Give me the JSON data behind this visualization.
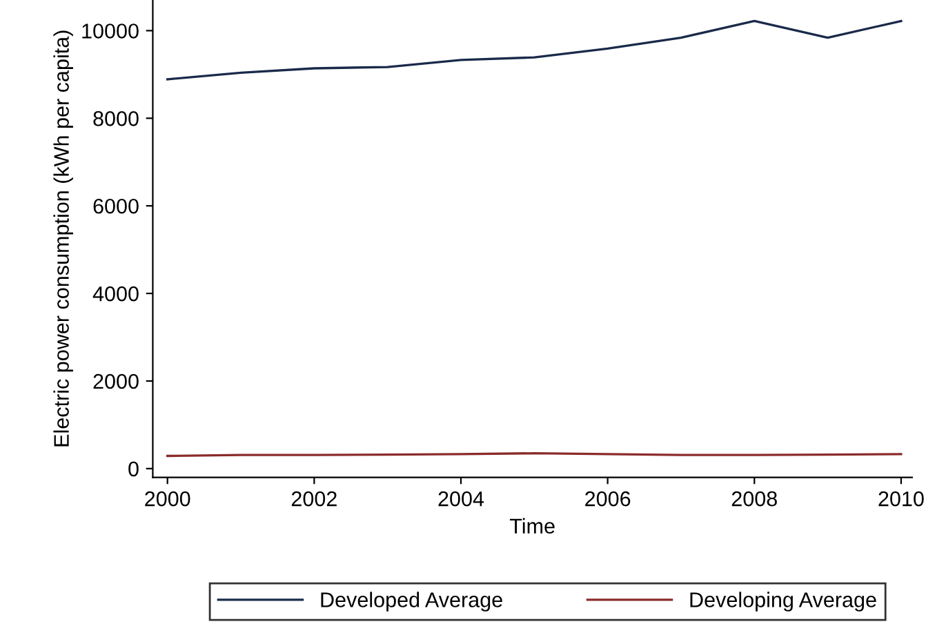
{
  "chart_data": {
    "type": "line",
    "xlabel": "Time",
    "ylabel": "Electric power consumption (kWh per capita)",
    "x": [
      2000,
      2001,
      2002,
      2003,
      2004,
      2005,
      2006,
      2007,
      2008,
      2009,
      2010
    ],
    "series": [
      {
        "name": "Developed Average",
        "color": "#1a2a4a",
        "values": [
          8890,
          9040,
          9140,
          9170,
          9330,
          9390,
          9590,
          9840,
          10220,
          9840,
          10220
        ]
      },
      {
        "name": "Developing Average",
        "color": "#8b2b2b",
        "values": [
          290,
          310,
          310,
          320,
          330,
          350,
          330,
          310,
          310,
          320,
          330
        ]
      }
    ],
    "xlim": [
      1999.8,
      2010.15
    ],
    "ylim": [
      -200,
      10700
    ],
    "xticks": [
      2000,
      2002,
      2004,
      2006,
      2008,
      2010
    ],
    "yticks": [
      0,
      2000,
      4000,
      6000,
      8000,
      10000
    ],
    "legend": "bottom",
    "grid": false,
    "marker": "none",
    "line_style": "solid"
  }
}
